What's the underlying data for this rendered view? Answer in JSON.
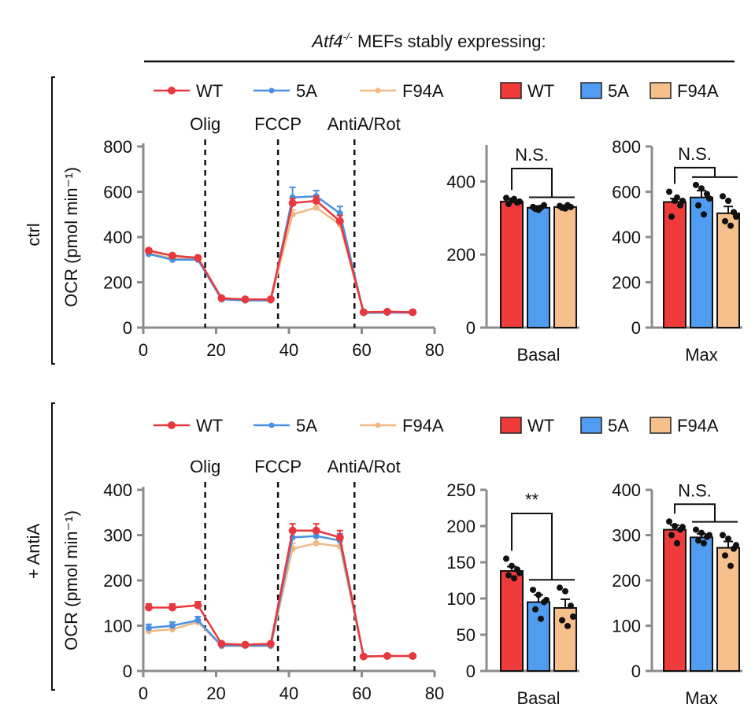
{
  "header": {
    "gene": "Atf4",
    "superscript": "-/-",
    "rest": " MEFs stably expressing:"
  },
  "colors": {
    "WT": "#e8383d",
    "5A": "#4a90e2",
    "F94A": "#f0b882",
    "bar_WT": "#f03b3b",
    "bar_5A": "#4f9cf0",
    "bar_F94A": "#f5c08c",
    "axis": "#8c8c8c"
  },
  "chart_data": [
    {
      "id": "ctrl_trace",
      "type": "line",
      "row_label": "ctrl",
      "ylabel": "OCR (pmol min⁻¹)",
      "xlim": [
        0,
        80
      ],
      "ylim": [
        0,
        800
      ],
      "xticks": [
        0,
        20,
        40,
        60,
        80
      ],
      "yticks": [
        0,
        200,
        400,
        600,
        800
      ],
      "injections": [
        {
          "label": "Olig",
          "x": 17
        },
        {
          "label": "FCCP",
          "x": 37
        },
        {
          "label": "AntiA/Rot",
          "x": 58
        }
      ],
      "legend": [
        "WT",
        "5A",
        "F94A"
      ],
      "x": [
        1.5,
        8,
        15,
        21.5,
        28,
        35,
        41,
        47.5,
        54,
        60.5,
        67,
        74
      ],
      "series": [
        {
          "name": "WT",
          "values": [
            340,
            318,
            308,
            130,
            125,
            125,
            550,
            560,
            470,
            68,
            70,
            68
          ],
          "err": [
            8,
            6,
            6,
            5,
            4,
            5,
            20,
            20,
            25,
            3,
            3,
            3
          ]
        },
        {
          "name": "5A",
          "values": [
            325,
            300,
            300,
            125,
            120,
            120,
            575,
            580,
            505,
            65,
            66,
            66
          ],
          "err": [
            8,
            6,
            6,
            5,
            4,
            5,
            45,
            25,
            30,
            3,
            3,
            3
          ]
        },
        {
          "name": "F94A",
          "values": [
            330,
            305,
            305,
            125,
            120,
            120,
            500,
            530,
            455,
            65,
            66,
            65
          ],
          "err": [
            8,
            6,
            6,
            5,
            4,
            5,
            20,
            20,
            25,
            3,
            3,
            3
          ]
        }
      ]
    },
    {
      "id": "ctrl_basal",
      "type": "bar",
      "xlabel": "Basal",
      "ylim": [
        0,
        500
      ],
      "yticks": [
        0,
        200,
        400
      ],
      "categories": [
        "WT",
        "5A",
        "F94A"
      ],
      "values": [
        345,
        328,
        330
      ],
      "err": [
        8,
        5,
        5
      ],
      "points": [
        [
          355,
          348,
          342,
          338,
          352,
          345
        ],
        [
          330,
          322,
          335,
          325,
          328
        ],
        [
          333,
          326,
          330,
          328,
          335
        ]
      ],
      "annotation": "N.S.",
      "legend": [
        "WT",
        "5A",
        "F94A"
      ]
    },
    {
      "id": "ctrl_max",
      "type": "bar",
      "xlabel": "Max",
      "ylim": [
        0,
        800
      ],
      "yticks": [
        0,
        200,
        400,
        600,
        800
      ],
      "categories": [
        "WT",
        "5A",
        "F94A"
      ],
      "values": [
        555,
        575,
        505
      ],
      "err": [
        15,
        30,
        30
      ],
      "points": [
        [
          600,
          560,
          540,
          490,
          575,
          560
        ],
        [
          630,
          615,
          590,
          540,
          500,
          570
        ],
        [
          580,
          560,
          510,
          470,
          450,
          490
        ]
      ],
      "annotation": "N.S."
    },
    {
      "id": "antia_trace",
      "type": "line",
      "row_label": "+ AntiA",
      "ylabel": "OCR (pmol min⁻¹)",
      "xlim": [
        0,
        80
      ],
      "ylim": [
        0,
        400
      ],
      "xticks": [
        0,
        20,
        40,
        60,
        80
      ],
      "yticks": [
        0,
        100,
        200,
        300,
        400
      ],
      "injections": [
        {
          "label": "Olig",
          "x": 17
        },
        {
          "label": "FCCP",
          "x": 37
        },
        {
          "label": "AntiA/Rot",
          "x": 58
        }
      ],
      "legend": [
        "WT",
        "5A",
        "F94A"
      ],
      "x": [
        1.5,
        8,
        15,
        21.5,
        28,
        35,
        41,
        47.5,
        54,
        60.5,
        67,
        74
      ],
      "series": [
        {
          "name": "WT",
          "values": [
            140,
            140,
            145,
            60,
            58,
            60,
            310,
            310,
            295,
            32,
            33,
            33
          ],
          "err": [
            8,
            8,
            8,
            3,
            3,
            3,
            15,
            15,
            15,
            2,
            2,
            2
          ]
        },
        {
          "name": "5A",
          "values": [
            95,
            100,
            112,
            56,
            56,
            56,
            295,
            298,
            288,
            32,
            33,
            33
          ],
          "err": [
            8,
            8,
            8,
            3,
            3,
            3,
            15,
            15,
            15,
            2,
            2,
            2
          ]
        },
        {
          "name": "F94A",
          "values": [
            88,
            92,
            108,
            55,
            55,
            55,
            270,
            282,
            275,
            32,
            33,
            33
          ],
          "err": [
            6,
            6,
            6,
            3,
            3,
            3,
            12,
            12,
            12,
            2,
            2,
            2
          ]
        }
      ]
    },
    {
      "id": "antia_basal",
      "type": "bar",
      "xlabel": "Basal",
      "ylim": [
        0,
        250
      ],
      "yticks": [
        0,
        50,
        100,
        150,
        200,
        250
      ],
      "categories": [
        "WT",
        "5A",
        "F94A"
      ],
      "values": [
        138,
        95,
        87
      ],
      "err": [
        6,
        10,
        12
      ],
      "points": [
        [
          155,
          145,
          140,
          132,
          128,
          135
        ],
        [
          112,
          105,
          95,
          85,
          72,
          98
        ],
        [
          115,
          110,
          90,
          70,
          62,
          75
        ]
      ],
      "annotation": "**",
      "legend": [
        "WT",
        "5A",
        "F94A"
      ]
    },
    {
      "id": "antia_max",
      "type": "bar",
      "xlabel": "Max",
      "ylim": [
        0,
        400
      ],
      "yticks": [
        0,
        100,
        200,
        300,
        400
      ],
      "categories": [
        "WT",
        "5A",
        "F94A"
      ],
      "values": [
        312,
        295,
        272
      ],
      "err": [
        10,
        8,
        14
      ],
      "points": [
        [
          330,
          320,
          312,
          300,
          282,
          318
        ],
        [
          312,
          305,
          296,
          288,
          282,
          300
        ],
        [
          300,
          292,
          270,
          255,
          232,
          278
        ]
      ],
      "annotation": "N.S."
    }
  ]
}
